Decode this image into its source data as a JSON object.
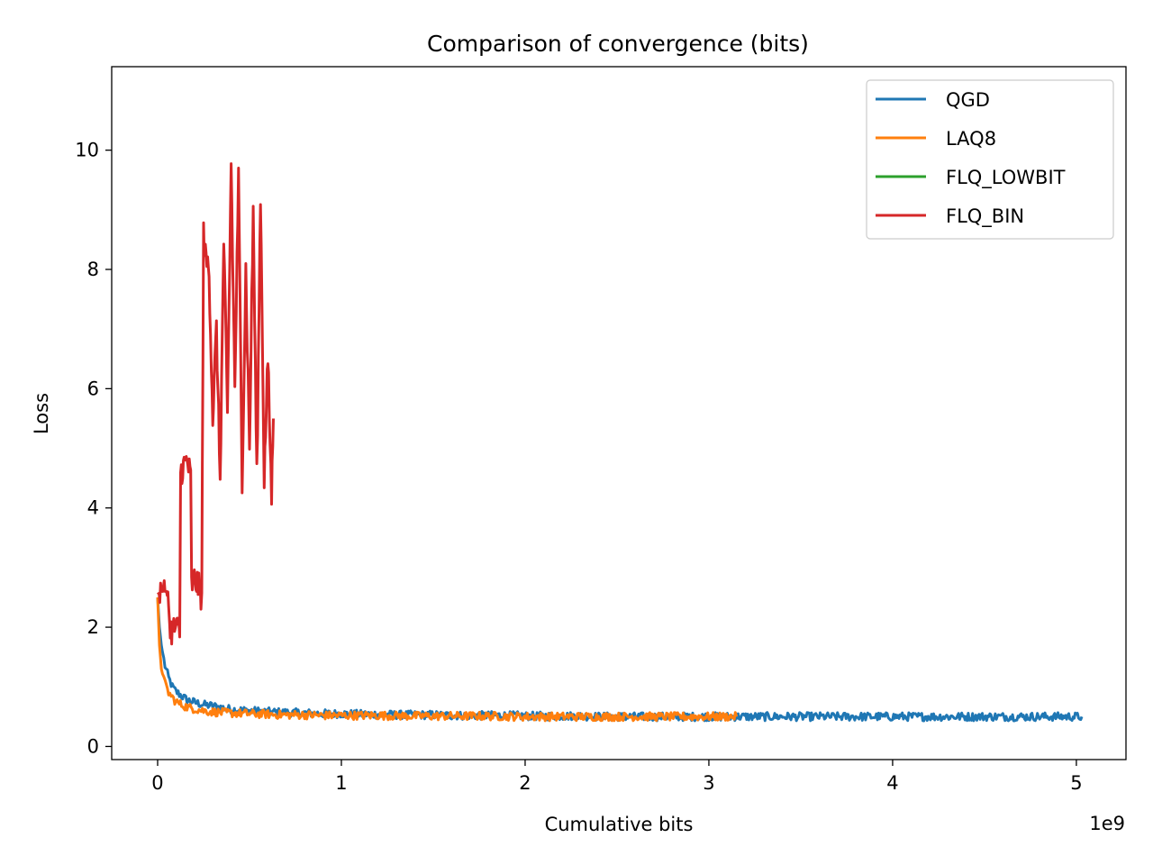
{
  "chart_data": {
    "type": "line",
    "title": "Comparison of convergence (bits)",
    "xlabel": "Cumulative bits",
    "ylabel": "Loss",
    "x_offset_label": "1e9",
    "xlim": [
      -0.25,
      5.27
    ],
    "ylim": [
      -0.22,
      11.4
    ],
    "x_ticks": [
      0,
      1,
      2,
      3,
      4,
      5
    ],
    "y_ticks": [
      0,
      2,
      4,
      6,
      8,
      10
    ],
    "grid": false,
    "legend_position": "upper right",
    "series": [
      {
        "name": "QGD",
        "color": "#1f77b4",
        "x": [
          0.0,
          0.01,
          0.02,
          0.04,
          0.06,
          0.08,
          0.1,
          0.13,
          0.16,
          0.2,
          0.25,
          0.3,
          0.35,
          0.4,
          0.5,
          0.6,
          0.7,
          0.8,
          0.9,
          1.0,
          1.1,
          1.2,
          1.3,
          1.4,
          1.5,
          1.6,
          1.7,
          1.8,
          1.9,
          2.0,
          2.1,
          2.2,
          2.3,
          2.4,
          2.5,
          2.6,
          2.7,
          2.8,
          2.9,
          3.0,
          3.1,
          3.2,
          3.3,
          3.4,
          3.5,
          3.6,
          3.7,
          3.8,
          3.9,
          4.0,
          4.1,
          4.2,
          4.3,
          4.4,
          4.5,
          4.6,
          4.7,
          4.8,
          4.9,
          5.0,
          5.03
        ],
        "values": [
          2.5,
          2.0,
          1.7,
          1.35,
          1.15,
          1.0,
          0.92,
          0.85,
          0.78,
          0.74,
          0.7,
          0.68,
          0.65,
          0.62,
          0.6,
          0.58,
          0.57,
          0.56,
          0.55,
          0.55,
          0.54,
          0.54,
          0.53,
          0.53,
          0.53,
          0.52,
          0.52,
          0.52,
          0.52,
          0.51,
          0.51,
          0.51,
          0.51,
          0.5,
          0.5,
          0.5,
          0.5,
          0.5,
          0.5,
          0.5,
          0.5,
          0.5,
          0.5,
          0.5,
          0.5,
          0.5,
          0.5,
          0.5,
          0.5,
          0.5,
          0.5,
          0.5,
          0.5,
          0.5,
          0.5,
          0.5,
          0.5,
          0.5,
          0.5,
          0.5,
          0.5
        ],
        "noise": 0.07
      },
      {
        "name": "LAQ8",
        "color": "#ff7f0e",
        "x": [
          0.0,
          0.01,
          0.02,
          0.04,
          0.06,
          0.08,
          0.1,
          0.13,
          0.16,
          0.2,
          0.25,
          0.3,
          0.4,
          0.5,
          0.6,
          0.7,
          0.8,
          0.9,
          1.0,
          1.2,
          1.4,
          1.6,
          1.8,
          2.0,
          2.2,
          2.4,
          2.6,
          2.8,
          3.0,
          3.15
        ],
        "values": [
          2.5,
          1.7,
          1.3,
          1.05,
          0.9,
          0.82,
          0.75,
          0.7,
          0.66,
          0.63,
          0.6,
          0.58,
          0.56,
          0.55,
          0.54,
          0.53,
          0.53,
          0.52,
          0.52,
          0.52,
          0.51,
          0.51,
          0.51,
          0.5,
          0.5,
          0.5,
          0.5,
          0.5,
          0.5,
          0.5
        ],
        "noise": 0.07
      },
      {
        "name": "FLQ_LOWBIT",
        "color": "#2ca02c",
        "x": [],
        "values": []
      },
      {
        "name": "FLQ_BIN",
        "color": "#d62728",
        "x": [
          0.0,
          0.02,
          0.04,
          0.06,
          0.065,
          0.08,
          0.1,
          0.12,
          0.125,
          0.14,
          0.16,
          0.18,
          0.185,
          0.2,
          0.22,
          0.24,
          0.25,
          0.26,
          0.28,
          0.3,
          0.32,
          0.34,
          0.36,
          0.38,
          0.4,
          0.42,
          0.44,
          0.46,
          0.48,
          0.5,
          0.52,
          0.54,
          0.56,
          0.58,
          0.6,
          0.62,
          0.63
        ],
        "values": [
          2.55,
          2.6,
          2.6,
          2.6,
          1.95,
          1.95,
          2.0,
          1.9,
          4.6,
          4.7,
          4.8,
          4.5,
          2.7,
          2.8,
          2.7,
          2.5,
          8.6,
          8.2,
          8.0,
          5.5,
          7.0,
          4.5,
          8.5,
          5.5,
          9.8,
          6.0,
          9.5,
          4.5,
          8.0,
          5.0,
          9.0,
          4.5,
          9.3,
          4.5,
          6.5,
          4.2,
          5.5
        ],
        "noise": 0.25
      }
    ]
  }
}
